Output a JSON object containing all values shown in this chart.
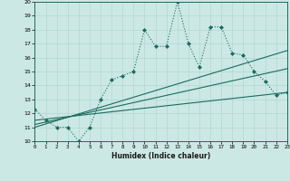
{
  "xlabel": "Humidex (Indice chaleur)",
  "ylabel": "",
  "bg_color": "#cce8e4",
  "line_color": "#1a6b60",
  "grid_color": "#b0d8d2",
  "xlim": [
    0,
    23
  ],
  "ylim": [
    10,
    20
  ],
  "yticks": [
    10,
    11,
    12,
    13,
    14,
    15,
    16,
    17,
    18,
    19,
    20
  ],
  "xticks": [
    0,
    1,
    2,
    3,
    4,
    5,
    6,
    7,
    8,
    9,
    10,
    11,
    12,
    13,
    14,
    15,
    16,
    17,
    18,
    19,
    20,
    21,
    22,
    23
  ],
  "series1_x": [
    0,
    1,
    2,
    3,
    4,
    5,
    6,
    7,
    8,
    9,
    10,
    11,
    12,
    13,
    14,
    15,
    16,
    17,
    18,
    19,
    20,
    21,
    22,
    23
  ],
  "series1_y": [
    12.3,
    11.5,
    11.0,
    11.0,
    10.0,
    11.0,
    13.0,
    14.4,
    14.7,
    15.0,
    18.0,
    16.8,
    16.8,
    20.0,
    17.0,
    15.3,
    18.2,
    18.2,
    16.3,
    16.2,
    15.0,
    14.3,
    13.3,
    13.5
  ],
  "series2_x": [
    0,
    23
  ],
  "series2_y": [
    11.5,
    13.5
  ],
  "series3_x": [
    0,
    23
  ],
  "series3_y": [
    11.2,
    15.2
  ],
  "series4_x": [
    0,
    23
  ],
  "series4_y": [
    11.0,
    16.5
  ]
}
